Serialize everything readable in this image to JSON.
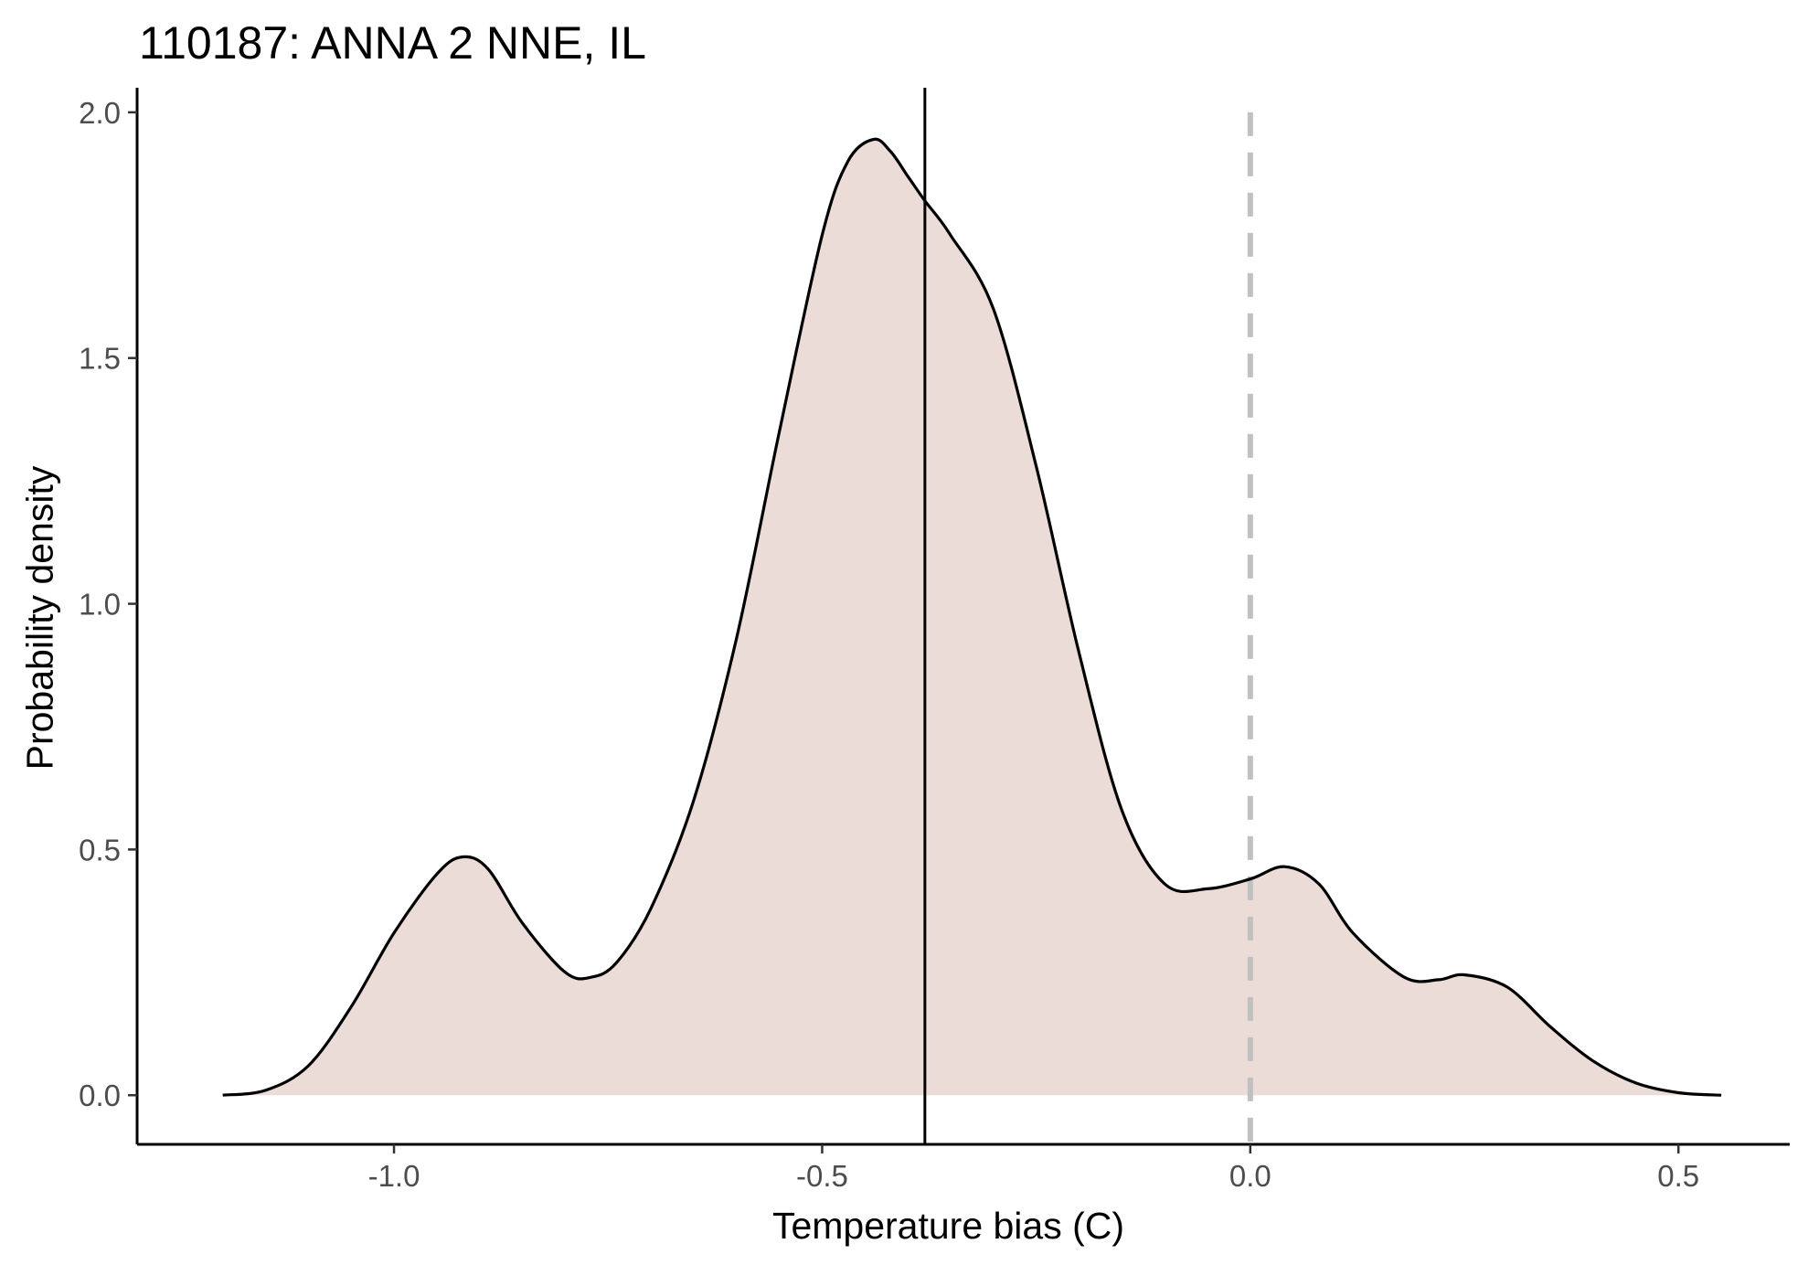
{
  "chart_data": {
    "type": "area",
    "title": "110187: ANNA 2 NNE, IL",
    "xlabel": "Temperature bias (C)",
    "ylabel": "Probability density",
    "xlim": [
      -1.3,
      0.63
    ],
    "ylim": [
      -0.1,
      2.05
    ],
    "x_ticks": [
      -1.0,
      -0.5,
      0.0,
      0.5
    ],
    "x_tick_labels": [
      "-1.0",
      "-0.5",
      "0.0",
      "0.5"
    ],
    "y_ticks": [
      0.0,
      0.5,
      1.0,
      1.5,
      2.0
    ],
    "y_tick_labels": [
      "0.0",
      "0.5",
      "1.0",
      "1.5",
      "2.0"
    ],
    "grid": false,
    "fill_color": "#ecdcd8",
    "line_color": "#000000",
    "series": [
      {
        "x": [
          -1.2,
          -1.15,
          -1.1,
          -1.05,
          -1.0,
          -0.95,
          -0.92,
          -0.89,
          -0.85,
          -0.8,
          -0.77,
          -0.74,
          -0.7,
          -0.65,
          -0.6,
          -0.55,
          -0.5,
          -0.47,
          -0.44,
          -0.42,
          -0.4,
          -0.38,
          -0.35,
          -0.3,
          -0.25,
          -0.2,
          -0.15,
          -0.1,
          -0.05,
          0.0,
          0.04,
          0.08,
          0.12,
          0.18,
          0.22,
          0.25,
          0.3,
          0.35,
          0.4,
          0.45,
          0.5,
          0.55
        ],
        "y": [
          0.0,
          0.01,
          0.06,
          0.18,
          0.33,
          0.45,
          0.485,
          0.46,
          0.35,
          0.25,
          0.24,
          0.27,
          0.38,
          0.6,
          0.93,
          1.35,
          1.75,
          1.9,
          1.945,
          1.92,
          1.87,
          1.82,
          1.75,
          1.6,
          1.28,
          0.9,
          0.58,
          0.43,
          0.42,
          0.44,
          0.465,
          0.43,
          0.33,
          0.24,
          0.235,
          0.245,
          0.22,
          0.14,
          0.07,
          0.025,
          0.005,
          0.0
        ]
      }
    ],
    "mean_line": {
      "x": -0.38,
      "color": "#000000",
      "style": "solid"
    },
    "reference_line": {
      "x": 0.0,
      "color": "#c0c0c0",
      "style": "dashed"
    }
  }
}
